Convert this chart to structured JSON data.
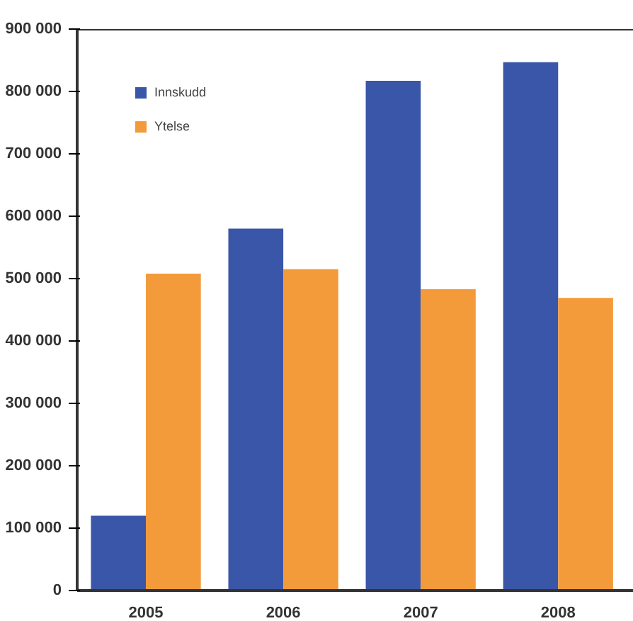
{
  "chart_data": {
    "type": "bar",
    "categories": [
      "2005",
      "2006",
      "2007",
      "2008"
    ],
    "series": [
      {
        "name": "Innskudd",
        "color": "#3a56a8",
        "values": [
          120000,
          580000,
          817000,
          847000
        ]
      },
      {
        "name": "Ytelse",
        "color": "#f39a3a",
        "values": [
          508000,
          515000,
          483000,
          469000
        ]
      }
    ],
    "ylim": [
      0,
      900000
    ],
    "yticks": [
      {
        "value": 0,
        "label": "0"
      },
      {
        "value": 100000,
        "label": "100 000"
      },
      {
        "value": 200000,
        "label": "200 000"
      },
      {
        "value": 300000,
        "label": "300 000"
      },
      {
        "value": 400000,
        "label": "400 000"
      },
      {
        "value": 500000,
        "label": "500 000"
      },
      {
        "value": 600000,
        "label": "600 000"
      },
      {
        "value": 700000,
        "label": "700 000"
      },
      {
        "value": 800000,
        "label": "800 000"
      },
      {
        "value": 900000,
        "label": "900 000"
      }
    ],
    "grid": false,
    "legend": "top left"
  }
}
